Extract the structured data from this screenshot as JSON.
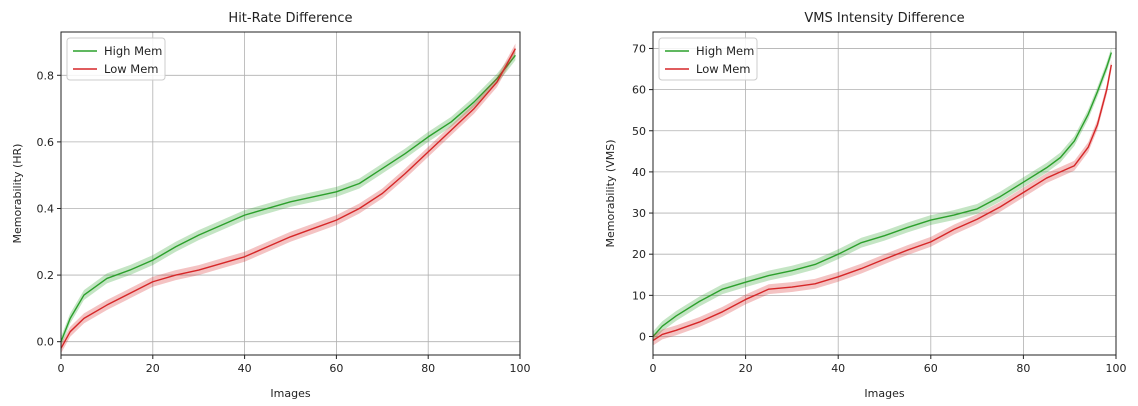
{
  "chart_data": [
    {
      "type": "line",
      "title": "Hit-Rate Difference",
      "xlabel": "Images",
      "ylabel": "Memorability (HR)",
      "xlim": [
        0,
        100
      ],
      "ylim": [
        -0.04,
        0.93
      ],
      "xticks": [
        0,
        20,
        40,
        60,
        80,
        100
      ],
      "yticks": [
        0.0,
        0.2,
        0.4,
        0.6,
        0.8
      ],
      "ytick_labels": [
        "0.0",
        "0.2",
        "0.4",
        "0.6",
        "0.8"
      ],
      "grid": true,
      "legend_position": "top-left",
      "x": [
        0,
        2,
        5,
        10,
        15,
        20,
        25,
        30,
        35,
        40,
        45,
        50,
        55,
        60,
        65,
        70,
        75,
        80,
        85,
        90,
        95,
        99
      ],
      "series": [
        {
          "name": "High Mem",
          "color": "#2ca02c",
          "band": 0.015,
          "values": [
            0.0,
            0.07,
            0.14,
            0.19,
            0.215,
            0.245,
            0.285,
            0.32,
            0.35,
            0.38,
            0.4,
            0.42,
            0.435,
            0.45,
            0.475,
            0.52,
            0.565,
            0.615,
            0.66,
            0.72,
            0.79,
            0.86
          ]
        },
        {
          "name": "Low Mem",
          "color": "#d62728",
          "band": 0.015,
          "values": [
            -0.02,
            0.03,
            0.07,
            0.11,
            0.145,
            0.18,
            0.2,
            0.215,
            0.235,
            0.255,
            0.285,
            0.315,
            0.34,
            0.365,
            0.4,
            0.445,
            0.505,
            0.57,
            0.635,
            0.7,
            0.78,
            0.88
          ]
        }
      ]
    },
    {
      "type": "line",
      "title": "VMS Intensity Difference",
      "xlabel": "Images",
      "ylabel": "Memorability (VMS)",
      "xlim": [
        0,
        100
      ],
      "ylim": [
        -4.5,
        74
      ],
      "xticks": [
        0,
        20,
        40,
        60,
        80,
        100
      ],
      "yticks": [
        0,
        10,
        20,
        30,
        40,
        50,
        60,
        70
      ],
      "ytick_labels": [
        "0",
        "10",
        "20",
        "30",
        "40",
        "50",
        "60",
        "70"
      ],
      "grid": true,
      "legend_position": "top-left",
      "x": [
        0,
        2,
        5,
        10,
        15,
        20,
        25,
        30,
        35,
        40,
        45,
        50,
        55,
        60,
        65,
        70,
        75,
        80,
        85,
        88,
        91,
        94,
        96,
        98,
        99
      ],
      "series": [
        {
          "name": "High Mem",
          "color": "#2ca02c",
          "band": 1.2,
          "values": [
            0.0,
            2.5,
            5.0,
            8.5,
            11.5,
            13.2,
            14.8,
            16.0,
            17.5,
            20.0,
            22.8,
            24.5,
            26.5,
            28.3,
            29.5,
            31.0,
            34.0,
            37.5,
            41.0,
            43.5,
            47.5,
            54.0,
            59.5,
            65.5,
            69.0
          ]
        },
        {
          "name": "Low Mem",
          "color": "#d62728",
          "band": 1.2,
          "values": [
            -1.0,
            0.5,
            1.5,
            3.5,
            6.0,
            9.0,
            11.5,
            12.0,
            12.8,
            14.5,
            16.5,
            18.8,
            21.0,
            23.0,
            26.0,
            28.5,
            31.5,
            35.0,
            38.5,
            40.0,
            41.5,
            46.0,
            51.5,
            60.0,
            66.0
          ]
        }
      ]
    }
  ]
}
